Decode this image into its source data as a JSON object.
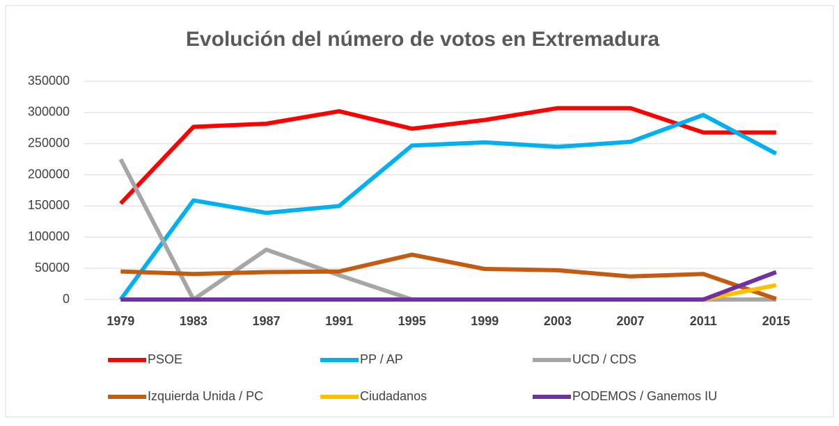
{
  "chart_data": {
    "type": "line",
    "title": "Evolución del número de votos en Extremadura",
    "categories": [
      "1979",
      "1983",
      "1987",
      "1991",
      "1995",
      "1999",
      "2003",
      "2007",
      "2011",
      "2015"
    ],
    "series": [
      {
        "name": "PSOE",
        "color": "#ff0000",
        "values": [
          154000,
          277000,
          282000,
          302000,
          274000,
          288000,
          307000,
          307000,
          268000,
          268000
        ]
      },
      {
        "name": "PP / AP",
        "color": "#00b0f0",
        "values": [
          0,
          159000,
          139000,
          150000,
          247000,
          252000,
          245000,
          253000,
          296000,
          234000
        ]
      },
      {
        "name": "UCD / CDS",
        "color": "#a6a6a6",
        "values": [
          225000,
          0,
          80000,
          39000,
          0,
          0,
          0,
          0,
          0,
          0
        ]
      },
      {
        "name": "Izquierda Unida / PC",
        "color": "#c55a11",
        "values": [
          45000,
          41000,
          44000,
          45000,
          72000,
          49000,
          47000,
          37000,
          41000,
          1000
        ]
      },
      {
        "name": "Ciudadanos",
        "color": "#ffc000",
        "values": [
          0,
          0,
          0,
          0,
          0,
          0,
          0,
          0,
          0,
          23000
        ]
      },
      {
        "name": "PODEMOS / Ganemos IU",
        "color": "#7030a0",
        "values": [
          0,
          0,
          0,
          0,
          0,
          0,
          0,
          0,
          0,
          44000
        ]
      }
    ],
    "ylim": [
      0,
      350000
    ],
    "yticks": [
      0,
      50000,
      100000,
      150000,
      200000,
      250000,
      300000,
      350000
    ],
    "grid": true
  }
}
